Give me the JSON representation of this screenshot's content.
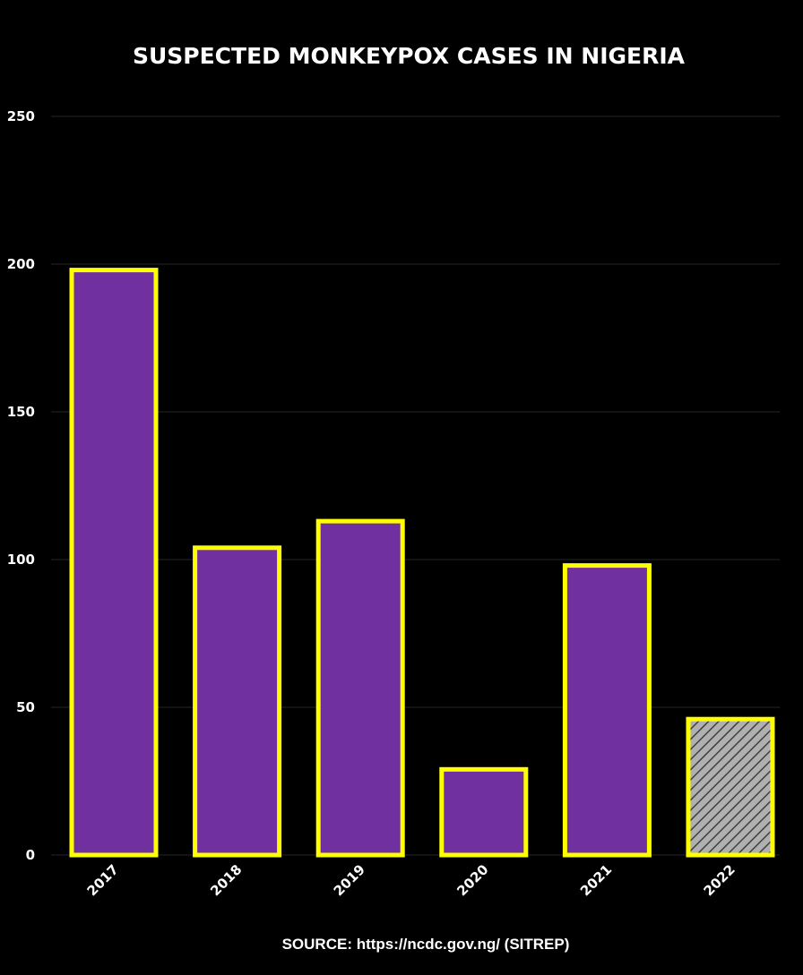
{
  "chart_data": {
    "type": "bar",
    "title": "SUSPECTED MONKEYPOX CASES IN NIGERIA",
    "categories": [
      "2017",
      "2018",
      "2019",
      "2020",
      "2021",
      "2022"
    ],
    "values": [
      198,
      104,
      113,
      29,
      98,
      46
    ],
    "ylim": [
      0,
      250
    ],
    "yticks": [
      "0",
      "50",
      "100",
      "150",
      "200",
      "250"
    ],
    "grid": true,
    "xlabel": "",
    "ylabel": "",
    "hatched_categories": [
      "2022"
    ],
    "source": "SOURCE: https://ncdc.gov.ng/ (SITREP)",
    "colors": {
      "background": "#000000",
      "bar_fill": "#7030a0",
      "bar_edge": "#ffff00",
      "hatch_fill": "#b0b0b0",
      "hatch_line": "#404040",
      "grid": "#262626",
      "text": "#ffffff"
    }
  }
}
